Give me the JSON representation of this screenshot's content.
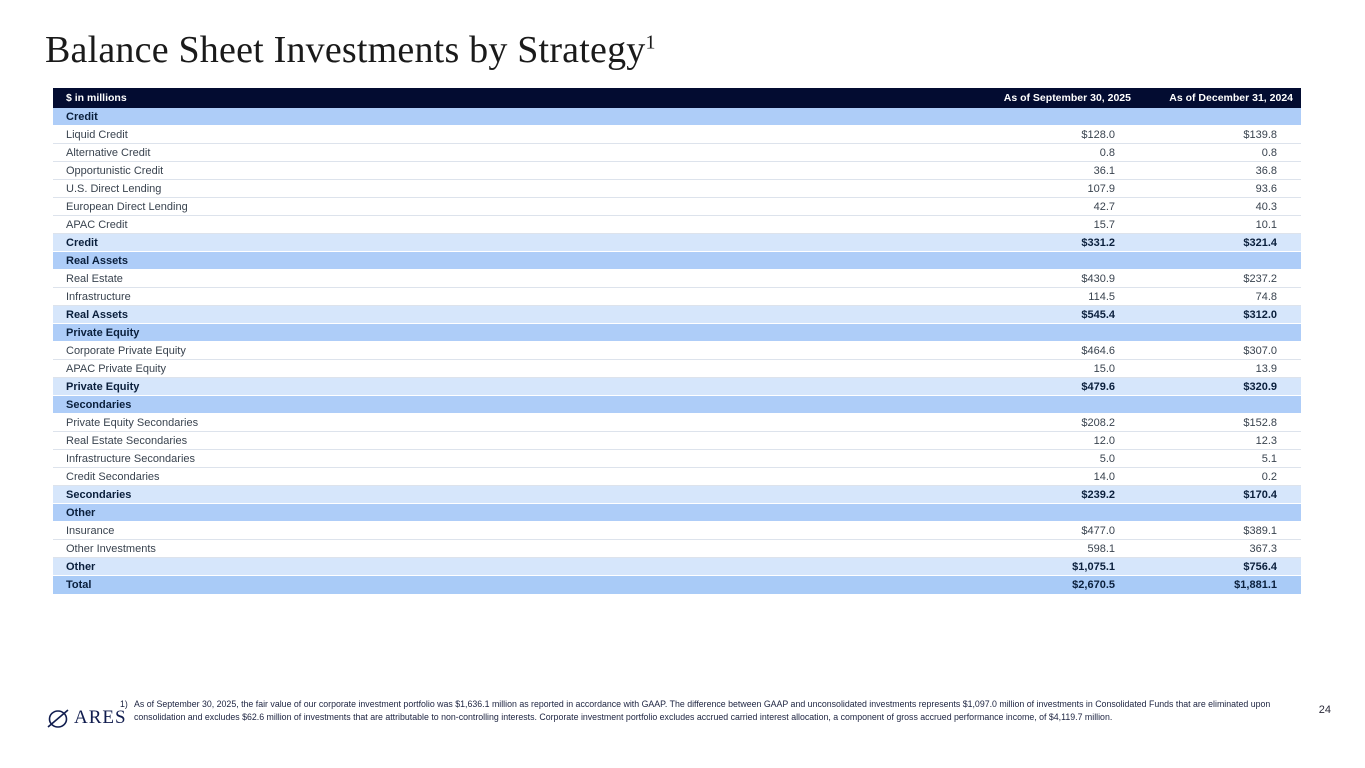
{
  "slide": {
    "title": "Balance Sheet Investments by Strategy",
    "title_superscript": "1",
    "page_number": "24"
  },
  "table": {
    "header": {
      "col1": "$ in millions",
      "col2": "As of September 30, 2025",
      "col3": "As of December 31, 2024"
    },
    "rows": [
      {
        "type": "section",
        "label": "Credit",
        "v1": "",
        "v2": ""
      },
      {
        "type": "data",
        "label": "Liquid Credit",
        "v1": "$128.0",
        "v2": "$139.8"
      },
      {
        "type": "data",
        "label": "Alternative Credit",
        "v1": "0.8",
        "v2": "0.8"
      },
      {
        "type": "data",
        "label": "Opportunistic Credit",
        "v1": "36.1",
        "v2": "36.8"
      },
      {
        "type": "data",
        "label": "U.S. Direct Lending",
        "v1": "107.9",
        "v2": "93.6"
      },
      {
        "type": "data",
        "label": "European Direct Lending",
        "v1": "42.7",
        "v2": "40.3"
      },
      {
        "type": "data",
        "label": "APAC Credit",
        "v1": "15.7",
        "v2": "10.1"
      },
      {
        "type": "subtotal",
        "label": "Credit",
        "v1": "$331.2",
        "v2": "$321.4"
      },
      {
        "type": "section",
        "label": "Real Assets",
        "v1": "",
        "v2": ""
      },
      {
        "type": "data",
        "label": "Real Estate",
        "v1": "$430.9",
        "v2": "$237.2"
      },
      {
        "type": "data",
        "label": "Infrastructure",
        "v1": "114.5",
        "v2": "74.8"
      },
      {
        "type": "subtotal",
        "label": "Real Assets",
        "v1": "$545.4",
        "v2": "$312.0"
      },
      {
        "type": "section",
        "label": "Private Equity",
        "v1": "",
        "v2": ""
      },
      {
        "type": "data",
        "label": "Corporate Private Equity",
        "v1": "$464.6",
        "v2": "$307.0"
      },
      {
        "type": "data",
        "label": "APAC Private Equity",
        "v1": "15.0",
        "v2": "13.9"
      },
      {
        "type": "subtotal",
        "label": "Private Equity",
        "v1": "$479.6",
        "v2": "$320.9"
      },
      {
        "type": "section",
        "label": "Secondaries",
        "v1": "",
        "v2": ""
      },
      {
        "type": "data",
        "label": "Private Equity Secondaries",
        "v1": "$208.2",
        "v2": "$152.8"
      },
      {
        "type": "data",
        "label": "Real Estate Secondaries",
        "v1": "12.0",
        "v2": "12.3"
      },
      {
        "type": "data",
        "label": "Infrastructure Secondaries",
        "v1": "5.0",
        "v2": "5.1"
      },
      {
        "type": "data",
        "label": "Credit Secondaries",
        "v1": "14.0",
        "v2": "0.2"
      },
      {
        "type": "subtotal",
        "label": "Secondaries",
        "v1": "$239.2",
        "v2": "$170.4"
      },
      {
        "type": "section",
        "label": "Other",
        "v1": "",
        "v2": ""
      },
      {
        "type": "data",
        "label": "Insurance",
        "v1": "$477.0",
        "v2": "$389.1"
      },
      {
        "type": "data",
        "label": "Other Investments",
        "v1": "598.1",
        "v2": "367.3"
      },
      {
        "type": "subtotal",
        "label": "Other",
        "v1": "$1,075.1",
        "v2": "$756.4"
      },
      {
        "type": "total",
        "label": "Total",
        "v1": "$2,670.5",
        "v2": "$1,881.1"
      }
    ]
  },
  "footer": {
    "logo_text": "ARES",
    "footnote_marker": "1)",
    "footnote_text": "As of September 30, 2025, the fair value of our corporate investment portfolio was $1,636.1 million as reported in accordance with GAAP. The difference between GAAP and unconsolidated investments represents $1,097.0 million of investments in Consolidated Funds that are eliminated upon consolidation and excludes $62.6 million of investments that are attributable to non-controlling interests. Corporate investment portfolio excludes accrued carried interest allocation, a component of gross accrued performance income, of $4,119.7 million."
  },
  "colors": {
    "header_bg": "#030c31",
    "section_bg": "#aecdf8",
    "subtotal_bg": "#d6e6fb",
    "total_bg": "#a9cbf7",
    "navy_text": "#0a1f3c",
    "logo_navy": "#101c4e"
  }
}
